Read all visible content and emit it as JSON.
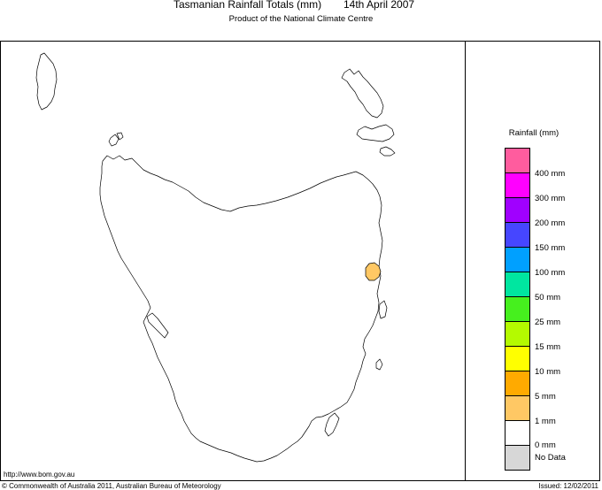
{
  "header": {
    "title": "Tasmanian Rainfall Totals (mm)",
    "date": "14th April 2007",
    "subtitle": "Product of the National Climate Centre"
  },
  "legend": {
    "title": "Rainfall (mm)",
    "swatches": [
      {
        "color": "#ff5c9e"
      },
      {
        "color": "#ff00ff"
      },
      {
        "color": "#a000ff"
      },
      {
        "color": "#4646ff"
      },
      {
        "color": "#00a0ff"
      },
      {
        "color": "#00e6a0"
      },
      {
        "color": "#46f01e"
      },
      {
        "color": "#b4fa00"
      },
      {
        "color": "#ffff00"
      },
      {
        "color": "#ffaa00"
      },
      {
        "color": "#ffc864"
      },
      {
        "color": "#ffffff"
      },
      {
        "color": "#d7d7d7"
      }
    ],
    "labels": [
      "400 mm",
      "300 mm",
      "200 mm",
      "150 mm",
      "100 mm",
      "50 mm",
      "25 mm",
      "15 mm",
      "10 mm",
      "5 mm",
      "1 mm",
      "0 mm"
    ],
    "no_data_label": "No Data"
  },
  "map": {
    "region": "Tasmania",
    "rain_area_color": "#ffc864"
  },
  "footer": {
    "url": "http://www.bom.gov.au",
    "copyright": "© Commonwealth of Australia 2011, Australian Bureau of Meteorology",
    "issued": "Issued: 12/02/2011"
  }
}
